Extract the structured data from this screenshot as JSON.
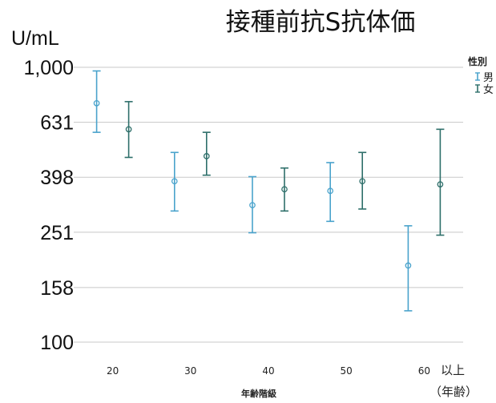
{
  "chart_data": {
    "type": "scatter",
    "title": "接種前抗S抗体価",
    "ylabel": "U/mL",
    "xlabel": "年齢階級",
    "y_scale": "log",
    "ylim": [
      100,
      1000
    ],
    "yticks": [
      100,
      158,
      251,
      398,
      631,
      1000
    ],
    "ytick_labels": [
      "100",
      "158",
      "251",
      "398",
      "631",
      "1,000"
    ],
    "categories": [
      "20",
      "30",
      "40",
      "50",
      "60"
    ],
    "x_notes": [
      "以上",
      "（年齢）"
    ],
    "grid": true,
    "legend": {
      "title": "性別",
      "position": "top-right"
    },
    "series": [
      {
        "name": "男",
        "color": "#4aa3cc",
        "values": [
          740,
          385,
          315,
          355,
          190
        ],
        "lower": [
          580,
          300,
          250,
          275,
          130
        ],
        "upper": [
          970,
          490,
          400,
          450,
          265
        ]
      },
      {
        "name": "女",
        "color": "#2e6f6a",
        "values": [
          595,
          475,
          360,
          385,
          375
        ],
        "lower": [
          470,
          405,
          300,
          305,
          245
        ],
        "upper": [
          750,
          580,
          430,
          490,
          595
        ]
      }
    ]
  }
}
